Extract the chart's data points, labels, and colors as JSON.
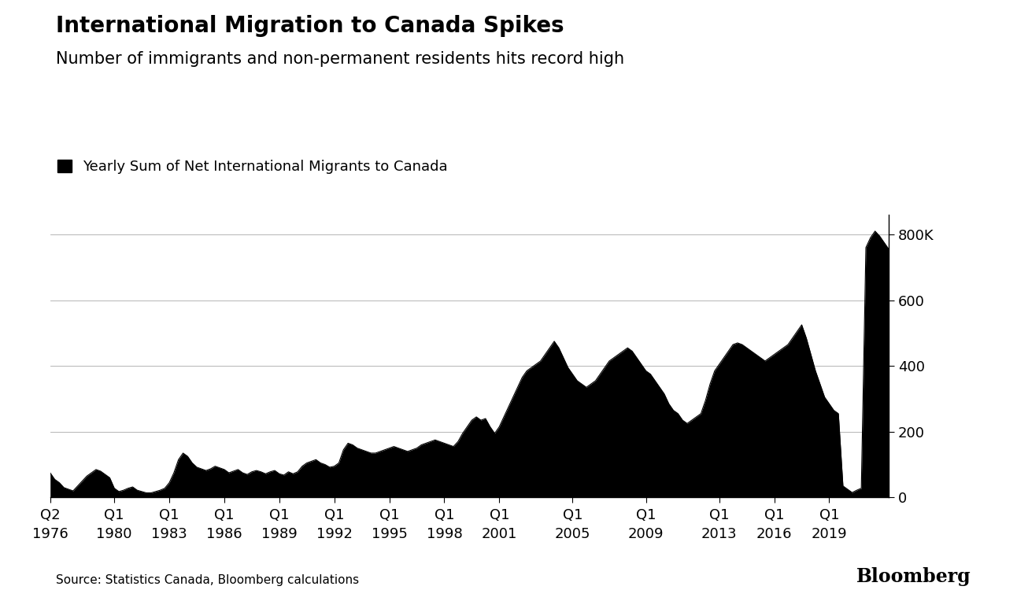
{
  "title": "International Migration to Canada Spikes",
  "subtitle": "Number of immigrants and non-permanent residents hits record high",
  "legend_label": "Yearly Sum of Net International Migrants to Canada",
  "source": "Source: Statistics Canada, Bloomberg calculations",
  "bloomberg_label": "Bloomberg",
  "fill_color": "#000000",
  "background_color": "#ffffff",
  "title_fontsize": 20,
  "subtitle_fontsize": 15,
  "legend_fontsize": 13,
  "tick_fontsize": 13,
  "source_fontsize": 11,
  "bloomberg_fontsize": 17,
  "ylabel_ticks": [
    0,
    200,
    400,
    600,
    800
  ],
  "ylabel_labels": [
    "0",
    "200",
    "400",
    "600",
    "800K"
  ],
  "ylim": [
    0,
    860
  ],
  "xtick_positions": [
    0,
    14,
    26,
    38,
    50,
    62,
    74,
    86,
    98,
    114,
    130,
    146,
    158,
    170
  ],
  "xtick_top_labels": [
    "Q2",
    "Q1",
    "Q1",
    "Q1",
    "Q1",
    "Q1",
    "Q1",
    "Q1",
    "Q1",
    "Q1",
    "Q1",
    "Q1",
    "Q1",
    "Q1"
  ],
  "xtick_bot_labels": [
    "1976",
    "1980",
    "1983",
    "1986",
    "1989",
    "1992",
    "1995",
    "1998",
    "2001",
    "2005",
    "2009",
    "2013",
    "2016",
    "2019"
  ],
  "data_y": [
    75,
    55,
    45,
    30,
    25,
    20,
    35,
    50,
    65,
    75,
    85,
    80,
    70,
    60,
    28,
    18,
    22,
    28,
    32,
    22,
    18,
    14,
    14,
    18,
    22,
    28,
    45,
    75,
    115,
    135,
    125,
    105,
    92,
    87,
    82,
    87,
    95,
    90,
    85,
    75,
    80,
    85,
    75,
    70,
    78,
    82,
    78,
    72,
    78,
    82,
    72,
    68,
    78,
    72,
    78,
    95,
    105,
    110,
    115,
    105,
    100,
    92,
    95,
    105,
    145,
    165,
    160,
    150,
    145,
    140,
    135,
    135,
    140,
    145,
    150,
    155,
    150,
    145,
    140,
    145,
    150,
    160,
    165,
    170,
    175,
    170,
    165,
    160,
    155,
    170,
    195,
    215,
    235,
    245,
    235,
    240,
    215,
    195,
    215,
    245,
    275,
    305,
    335,
    365,
    385,
    395,
    405,
    415,
    435,
    455,
    475,
    455,
    425,
    395,
    375,
    355,
    345,
    335,
    345,
    355,
    375,
    395,
    415,
    425,
    435,
    445,
    455,
    445,
    425,
    405,
    385,
    375,
    355,
    335,
    315,
    285,
    265,
    255,
    235,
    225,
    235,
    245,
    255,
    295,
    345,
    385,
    405,
    425,
    445,
    465,
    470,
    465,
    455,
    445,
    435,
    425,
    415,
    425,
    435,
    445,
    455,
    465,
    485,
    505,
    525,
    485,
    435,
    385,
    345,
    305,
    285,
    265,
    255,
    35,
    25,
    15,
    22,
    28,
    760,
    790,
    810,
    795,
    775,
    755
  ]
}
